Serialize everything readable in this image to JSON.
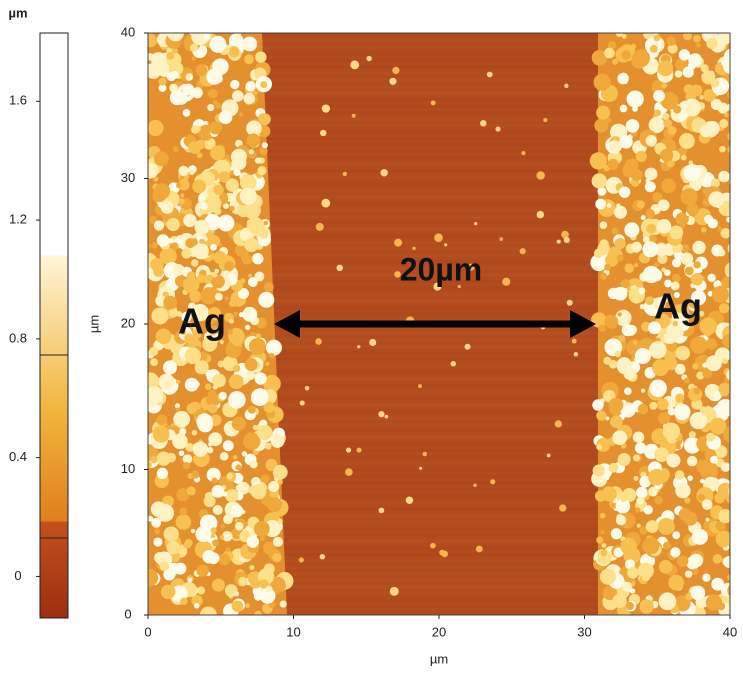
{
  "chart_data": {
    "type": "image",
    "x_label": "µm",
    "y_label": "µm",
    "xlim": [
      0,
      40
    ],
    "xticks": [
      0,
      10,
      20,
      30,
      40
    ],
    "ylim": [
      0,
      40
    ],
    "yticks": [
      0,
      10,
      20,
      30,
      40
    ],
    "colorbar": {
      "label": "µm",
      "clim": [
        -0.14,
        1.83
      ],
      "ticks": [
        0,
        0.4,
        0.8,
        1.2,
        1.6
      ]
    },
    "annotations": [
      "Ag",
      "Ag",
      "20µm"
    ]
  }
}
